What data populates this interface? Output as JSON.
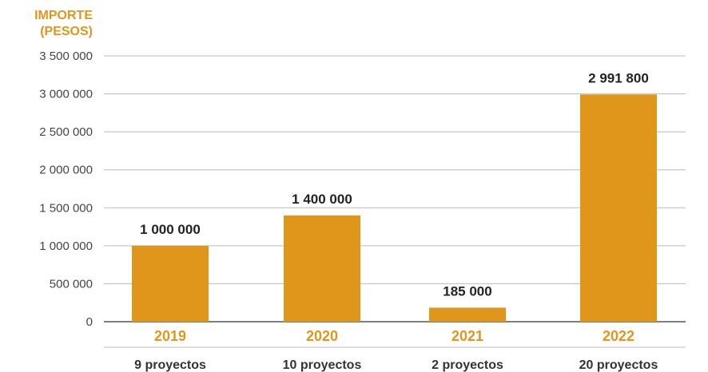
{
  "chart_data": {
    "type": "bar",
    "ylabel": [
      "IMPORTE",
      "(PESOS)"
    ],
    "categories": [
      "2019",
      "2020",
      "2021",
      "2022"
    ],
    "category_notes": [
      "9 proyectos",
      "10 proyectos",
      "2 proyectos",
      "20 proyectos"
    ],
    "values": [
      1000000,
      1400000,
      185000,
      2991800
    ],
    "value_labels": [
      "1 000 000",
      "1 400 000",
      "185 000",
      "2 991 800"
    ],
    "ylim": [
      0,
      3500000
    ],
    "yticks": [
      0,
      500000,
      1000000,
      1500000,
      2000000,
      2500000,
      3000000,
      3500000
    ],
    "ytick_labels": [
      "0",
      "500 000",
      "1 000 000",
      "1 500 000",
      "2 000 000",
      "2 500 000",
      "3 000 000",
      "3 500 000"
    ],
    "grid": true,
    "colors": {
      "bar": "#DF961B",
      "accent": "#DF961B",
      "grid": "#BBBBBB"
    }
  }
}
